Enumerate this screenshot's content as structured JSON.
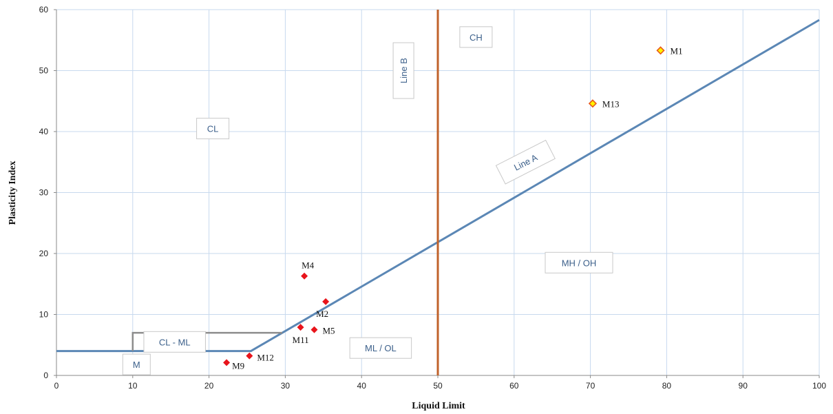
{
  "chart_data": {
    "type": "scatter",
    "xlabel": "Liquid Limit",
    "ylabel": "Plasticity Index",
    "xlim": [
      0,
      100
    ],
    "ylim": [
      0,
      60
    ],
    "x_ticks": [
      0,
      10,
      20,
      30,
      40,
      50,
      60,
      70,
      80,
      90,
      100
    ],
    "y_ticks": [
      0,
      10,
      20,
      30,
      40,
      50,
      60
    ],
    "grid": true,
    "lines": [
      {
        "name": "Line A",
        "color": "#5b87b5",
        "points": [
          [
            0,
            4
          ],
          [
            25.5,
            4
          ],
          [
            100,
            58.3
          ]
        ]
      },
      {
        "name": "Line B",
        "color": "#c0622a",
        "points": [
          [
            50,
            0
          ],
          [
            50,
            60
          ]
        ]
      },
      {
        "name": "CL - ML boundary",
        "color": "#8c8c8c",
        "points": [
          [
            10,
            4
          ],
          [
            10,
            7
          ],
          [
            29.6,
            7
          ]
        ]
      }
    ],
    "zones": [
      {
        "label": "CL",
        "x": 20.5,
        "y": 40.5,
        "rotation": 0
      },
      {
        "label": "CH",
        "x": 55,
        "y": 55.5,
        "rotation": 0
      },
      {
        "label": "Line B",
        "x": 45.5,
        "y": 50,
        "rotation": -90
      },
      {
        "label": "Line A",
        "x": 61.5,
        "y": 35,
        "rotation": -27
      },
      {
        "label": "MH /  OH",
        "x": 68.5,
        "y": 18.5,
        "rotation": 0
      },
      {
        "label": "ML / OL",
        "x": 42.5,
        "y": 4.5,
        "rotation": 0
      },
      {
        "label": "CL - ML",
        "x": 15.5,
        "y": 5.5,
        "rotation": 0
      },
      {
        "label": "M",
        "x": 10.5,
        "y": 1.8,
        "rotation": 0
      }
    ],
    "points": [
      {
        "label": "M1",
        "x": 79.2,
        "y": 53.3,
        "style": "hollow",
        "label_dx": 14,
        "label_dy": 5
      },
      {
        "label": "M13",
        "x": 70.3,
        "y": 44.6,
        "style": "hollow",
        "label_dx": 14,
        "label_dy": 5
      },
      {
        "label": "M4",
        "x": 32.5,
        "y": 16.3,
        "style": "filled",
        "label_dx": -4,
        "label_dy": -11
      },
      {
        "label": "M2",
        "x": 35.3,
        "y": 12.1,
        "style": "filled",
        "label_dx": -14,
        "label_dy": 22
      },
      {
        "label": "M11",
        "x": 32.0,
        "y": 7.9,
        "style": "filled",
        "label_dx": -12,
        "label_dy": 23
      },
      {
        "label": "M5",
        "x": 33.8,
        "y": 7.5,
        "style": "filled",
        "label_dx": 12,
        "label_dy": 6
      },
      {
        "label": "M12",
        "x": 25.3,
        "y": 3.2,
        "style": "filled",
        "label_dx": 11,
        "label_dy": 7
      },
      {
        "label": "M9",
        "x": 22.3,
        "y": 2.1,
        "style": "filled",
        "label_dx": 8,
        "label_dy": 9
      }
    ],
    "colors": {
      "grid": "#c7d9ee",
      "filled_marker": "#e8141b",
      "hollow_fill": "#fff200",
      "hollow_stroke": "#e8581b"
    }
  }
}
